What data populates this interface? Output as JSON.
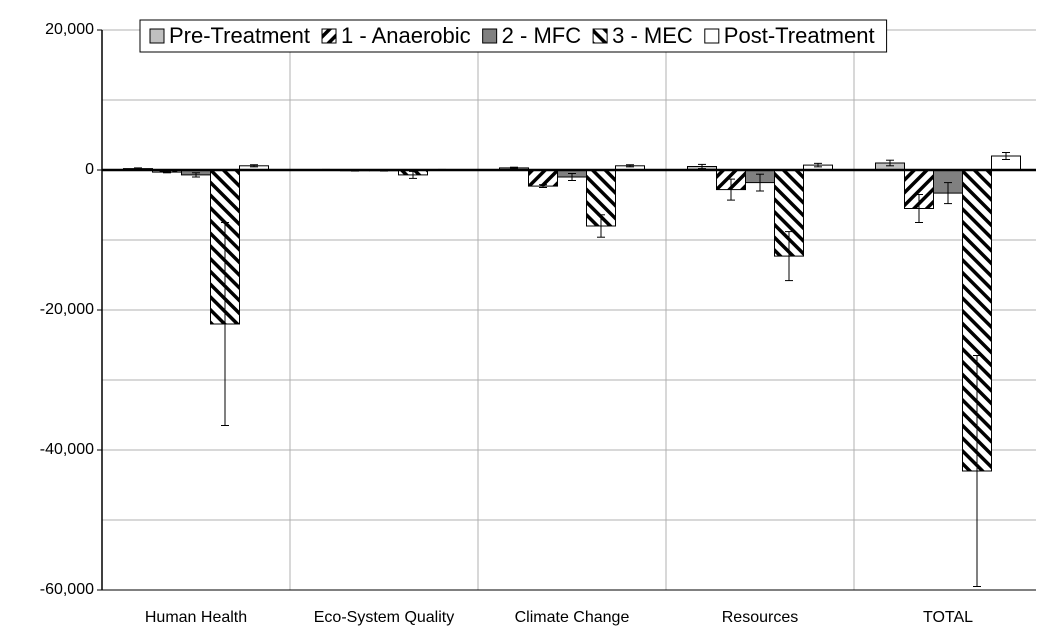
{
  "chart_data": {
    "type": "bar",
    "categories": [
      "Human Health",
      "Eco-System Quality",
      "Climate Change",
      "Resources",
      "TOTAL"
    ],
    "series": [
      {
        "name": "Pre-Treatment",
        "color": "#c0c0c0",
        "values": [
          200,
          50,
          300,
          500,
          1000
        ],
        "errors": [
          100,
          30,
          100,
          300,
          400
        ]
      },
      {
        "name": "1 - Anaerobic",
        "color": "#ffffff",
        "hatch": "forward",
        "values": [
          -300,
          -100,
          -2300,
          -2800,
          -5500
        ],
        "errors": [
          100,
          50,
          200,
          1500,
          2000
        ]
      },
      {
        "name": "2 - MFC",
        "color": "#808080",
        "values": [
          -700,
          -100,
          -1000,
          -1800,
          -3300
        ],
        "errors": [
          300,
          50,
          500,
          1200,
          1500
        ]
      },
      {
        "name": "3 - MEC",
        "color": "#ffffff",
        "hatch": "backward",
        "values": [
          -22000,
          -700,
          -8000,
          -12300,
          -43000
        ],
        "errors": [
          14500,
          500,
          1600,
          3500,
          16500
        ]
      },
      {
        "name": "Post-Treatment",
        "color": "#ffffff",
        "values": [
          600,
          50,
          600,
          700,
          2000
        ],
        "errors": [
          150,
          30,
          150,
          250,
          500
        ]
      }
    ],
    "ylim": [
      -60000,
      20000
    ],
    "yticks": [
      {
        "value": 20000,
        "label": "20,000"
      },
      0,
      {
        "value": -20000,
        "label": "-20,000"
      },
      {
        "value": -40000,
        "label": "-40,000"
      },
      {
        "value": -60000,
        "label": "-60,000"
      }
    ],
    "minor_yticks": [
      10000,
      -10000,
      -30000,
      -50000
    ],
    "grid": true
  }
}
